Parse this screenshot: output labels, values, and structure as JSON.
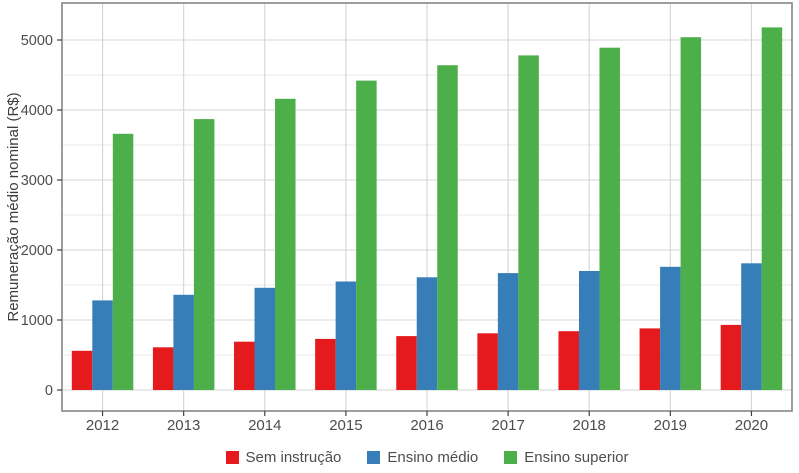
{
  "chart_data": {
    "type": "bar",
    "title": "",
    "xlabel": "",
    "ylabel": "Remuneração médio nominal (R$)",
    "categories": [
      "2012",
      "2013",
      "2014",
      "2015",
      "2016",
      "2017",
      "2018",
      "2019",
      "2020"
    ],
    "series": [
      {
        "name": "Sem instrução",
        "color": "#E41A1C",
        "values": [
          560,
          610,
          690,
          730,
          770,
          810,
          840,
          880,
          930
        ]
      },
      {
        "name": "Ensino médio",
        "color": "#377EB8",
        "values": [
          1280,
          1360,
          1460,
          1550,
          1610,
          1670,
          1700,
          1760,
          1810
        ]
      },
      {
        "name": "Ensino superior",
        "color": "#4DAF4A",
        "values": [
          3660,
          3870,
          4160,
          4420,
          4640,
          4780,
          4890,
          5040,
          5180
        ]
      }
    ],
    "ylim": [
      0,
      5000
    ],
    "yticks": [
      0,
      1000,
      2000,
      3000,
      4000,
      5000
    ],
    "minor_grid_step": 500,
    "grid": "on",
    "legend_position": "bottom"
  },
  "colors": {
    "background": "#ffffff",
    "panel_border": "#858585",
    "grid_major": "#d4d4d4",
    "grid_minor": "#e8e8e8",
    "axis_text": "#4d4d4d",
    "tick_mark": "#404040"
  }
}
